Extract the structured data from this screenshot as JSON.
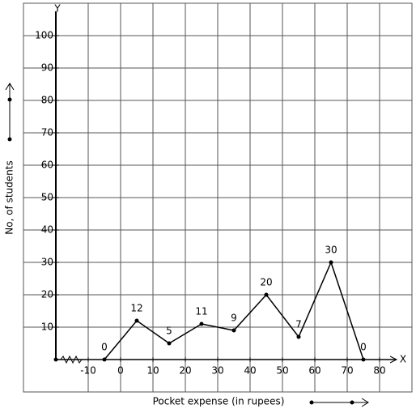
{
  "chart_data": {
    "type": "line",
    "x_label": "Pocket expense (in rupees)",
    "y_label": "No, of students",
    "x_axis_name": "X",
    "y_axis_name": "Y",
    "x": [
      -5,
      5,
      15,
      25,
      35,
      45,
      55,
      65,
      75
    ],
    "series": [
      {
        "color": "#000000",
        "values": [
          0,
          12,
          5,
          11,
          9,
          20,
          7,
          30,
          0
        ]
      }
    ],
    "xlim": [
      -30,
      90
    ],
    "ylim": [
      -10,
      110
    ],
    "xticks": [
      -10,
      0,
      10,
      20,
      30,
      40,
      50,
      60,
      70,
      80
    ],
    "yticks": [
      10,
      20,
      30,
      40,
      50,
      60,
      70,
      80,
      90,
      100
    ],
    "y_axis_at": -20,
    "grid": true
  }
}
